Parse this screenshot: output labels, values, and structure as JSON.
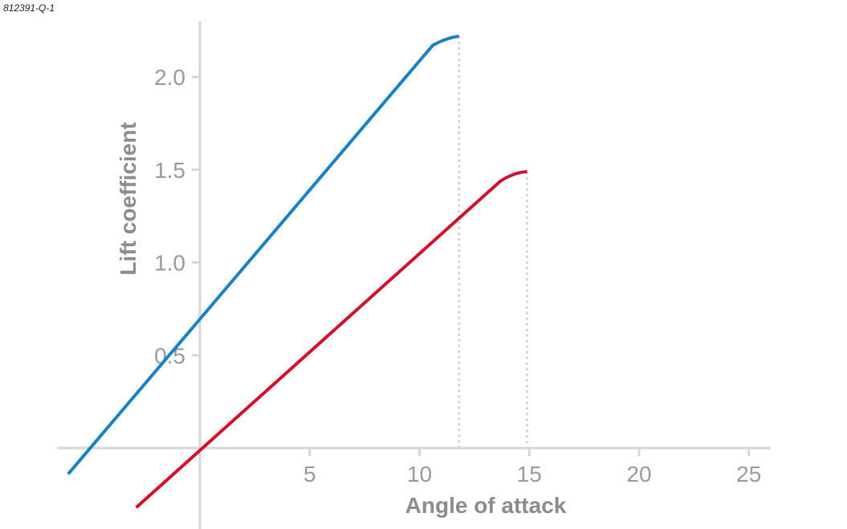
{
  "figure_id": "812391-Q-1",
  "chart_data": {
    "type": "line",
    "title": "",
    "xlabel": "Angle of attack",
    "ylabel": "Lift coefficient",
    "xlim": [
      -6.5,
      26
    ],
    "ylim": [
      -0.32,
      2.3
    ],
    "x_ticks": [
      5,
      10,
      15,
      20,
      25
    ],
    "x_tick_labels": [
      "5",
      "10",
      "15",
      "20",
      "25"
    ],
    "y_ticks": [
      0.5,
      1.0,
      1.5,
      2.0
    ],
    "y_tick_labels": [
      "0.5",
      "1.0",
      "1.5",
      "2.0"
    ],
    "grid": false,
    "legend": "none",
    "series": [
      {
        "color": "#1a82c4",
        "points": [
          [
            -6.0,
            -0.14
          ],
          [
            10.6,
            2.17
          ],
          [
            11.2,
            2.21
          ],
          [
            11.8,
            2.22
          ]
        ],
        "stall_angle": 11.8
      },
      {
        "color": "#d2102e",
        "points": [
          [
            -2.9,
            -0.32
          ],
          [
            13.7,
            1.44
          ],
          [
            14.3,
            1.485
          ],
          [
            14.9,
            1.49
          ]
        ],
        "stall_angle": 14.9
      }
    ]
  }
}
